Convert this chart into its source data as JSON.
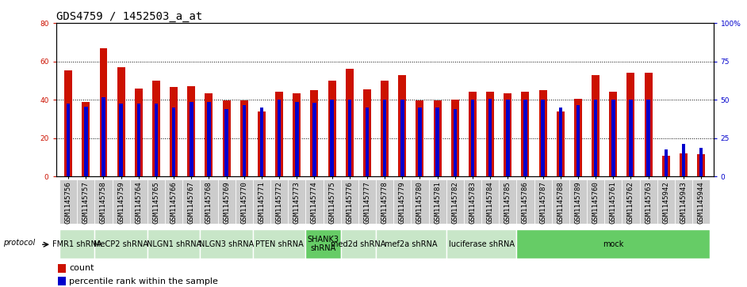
{
  "title": "GDS4759 / 1452503_a_at",
  "samples": [
    "GSM1145756",
    "GSM1145757",
    "GSM1145758",
    "GSM1145759",
    "GSM1145764",
    "GSM1145765",
    "GSM1145766",
    "GSM1145767",
    "GSM1145768",
    "GSM1145769",
    "GSM1145770",
    "GSM1145771",
    "GSM1145772",
    "GSM1145773",
    "GSM1145774",
    "GSM1145775",
    "GSM1145776",
    "GSM1145777",
    "GSM1145778",
    "GSM1145779",
    "GSM1145780",
    "GSM1145781",
    "GSM1145782",
    "GSM1145783",
    "GSM1145784",
    "GSM1145785",
    "GSM1145786",
    "GSM1145787",
    "GSM1145788",
    "GSM1145789",
    "GSM1145760",
    "GSM1145761",
    "GSM1145762",
    "GSM1145763",
    "GSM1145942",
    "GSM1145943",
    "GSM1145944"
  ],
  "counts": [
    55.5,
    39.0,
    67.0,
    57.0,
    46.0,
    50.0,
    46.5,
    47.0,
    43.5,
    39.5,
    39.5,
    34.0,
    44.0,
    43.5,
    45.0,
    50.0,
    56.0,
    45.5,
    50.0,
    53.0,
    39.5,
    39.5,
    40.0,
    44.0,
    44.0,
    43.5,
    44.0,
    45.0,
    34.0,
    40.5,
    53.0,
    44.0,
    54.0,
    54.0,
    11.0,
    12.0,
    11.5
  ],
  "percentiles": [
    38.0,
    36.5,
    41.5,
    38.0,
    38.0,
    38.0,
    36.0,
    39.0,
    39.0,
    35.0,
    37.0,
    36.0,
    40.0,
    39.0,
    38.5,
    40.0,
    40.0,
    36.0,
    40.0,
    40.0,
    36.0,
    36.0,
    35.0,
    40.0,
    40.5,
    40.0,
    40.0,
    40.0,
    36.0,
    37.0,
    40.0,
    40.0,
    40.0,
    40.0,
    14.0,
    17.0,
    15.0
  ],
  "protocols": [
    {
      "label": "FMR1 shRNA",
      "start": 0,
      "end": 2,
      "color": "#c8e6c8"
    },
    {
      "label": "MeCP2 shRNA",
      "start": 2,
      "end": 5,
      "color": "#c8e6c8"
    },
    {
      "label": "NLGN1 shRNA",
      "start": 5,
      "end": 8,
      "color": "#c8e6c8"
    },
    {
      "label": "NLGN3 shRNA",
      "start": 8,
      "end": 11,
      "color": "#c8e6c8"
    },
    {
      "label": "PTEN shRNA",
      "start": 11,
      "end": 14,
      "color": "#c8e6c8"
    },
    {
      "label": "SHANK3\nshRNA",
      "start": 14,
      "end": 16,
      "color": "#66cc66"
    },
    {
      "label": "med2d shRNA",
      "start": 16,
      "end": 18,
      "color": "#c8e6c8"
    },
    {
      "label": "mef2a shRNA",
      "start": 18,
      "end": 22,
      "color": "#c8e6c8"
    },
    {
      "label": "luciferase shRNA",
      "start": 22,
      "end": 26,
      "color": "#c8e6c8"
    },
    {
      "label": "mock",
      "start": 26,
      "end": 37,
      "color": "#66cc66"
    }
  ],
  "bar_color": "#cc1100",
  "percentile_color": "#0000cc",
  "bg_color": "#ffffff",
  "tick_bg_color": "#cccccc",
  "ylim_left": [
    0,
    80
  ],
  "ylim_right": [
    0,
    100
  ],
  "ylabel_left_color": "#cc1100",
  "ylabel_right_color": "#0000cc",
  "yticks_left": [
    0,
    20,
    40,
    60,
    80
  ],
  "yticks_right": [
    0,
    25,
    50,
    75,
    100
  ],
  "ytick_labels_right": [
    "0",
    "25",
    "50",
    "75",
    "100%"
  ],
  "title_fontsize": 10,
  "tick_fontsize": 6.5,
  "protocol_fontsize": 7,
  "legend_fontsize": 8
}
